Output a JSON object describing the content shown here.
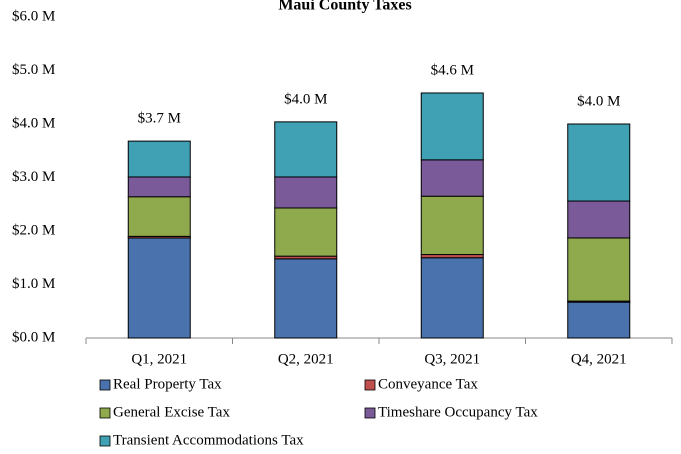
{
  "chart_data": {
    "type": "stacked_bar",
    "title": "Maui County Taxes",
    "categories": [
      "Q1, 2021",
      "Q2, 2021",
      "Q3, 2021",
      "Q4, 2021"
    ],
    "series": [
      {
        "name": "Real Property Tax",
        "color": "#4a73ad",
        "values": [
          1.87,
          1.48,
          1.5,
          0.67
        ]
      },
      {
        "name": "Conveyance Tax",
        "color": "#c0504d",
        "values": [
          0.03,
          0.05,
          0.06,
          0.02
        ]
      },
      {
        "name": "General Excise Tax",
        "color": "#8faa4c",
        "values": [
          0.74,
          0.9,
          1.09,
          1.18
        ]
      },
      {
        "name": "Timeshare Occupancy Tax",
        "color": "#7a5a98",
        "values": [
          0.37,
          0.58,
          0.68,
          0.69
        ]
      },
      {
        "name": "Transient Accommodations Tax",
        "color": "#40a0b4",
        "values": [
          0.67,
          1.03,
          1.25,
          1.44
        ]
      }
    ],
    "totals": {
      "values": [
        3.68,
        4.04,
        4.58,
        4.0
      ],
      "value_labels": [
        "$3.7 M",
        "$4.0 M",
        "$4.6 M",
        "$4.0 M"
      ]
    },
    "ylim": [
      0,
      6
    ],
    "yticks": [
      {
        "value": 0,
        "label": "$0.0 M"
      },
      {
        "value": 1,
        "label": "$1.0 M"
      },
      {
        "value": 2,
        "label": "$2.0 M"
      },
      {
        "value": 3,
        "label": "$3.0 M"
      },
      {
        "value": 4,
        "label": "$4.0 M"
      },
      {
        "value": 5,
        "label": "$5.0 M"
      },
      {
        "value": 6,
        "label": "$6.0 M"
      }
    ],
    "legend": "bottom"
  }
}
